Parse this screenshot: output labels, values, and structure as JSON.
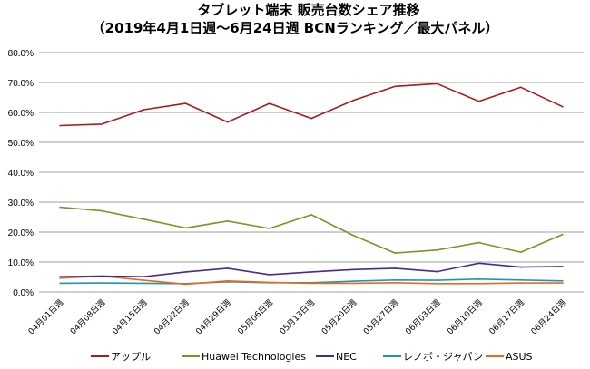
{
  "chart_data": {
    "type": "line",
    "title": "タブレット端末 販売台数シェア推移",
    "subtitle": "（2019年4月1日週～6月24日週 BCNランキング／最大パネル）",
    "xlabel": "",
    "ylabel": "",
    "ylim": [
      0,
      80
    ],
    "y_tick_step": 10,
    "y_tick_labels": [
      "0.0%",
      "10.0%",
      "20.0%",
      "30.0%",
      "40.0%",
      "50.0%",
      "60.0%",
      "70.0%",
      "80.0%"
    ],
    "grid": true,
    "legend_position": "bottom",
    "categories": [
      "04月01日週",
      "04月08日週",
      "04月15日週",
      "04月22日週",
      "04月29日週",
      "05月06日週",
      "05月13日週",
      "05月20日週",
      "05月27日週",
      "06月03日週",
      "06月10日週",
      "06月17日週",
      "06月24日週"
    ],
    "series": [
      {
        "name": "アップル",
        "color": "#a51c1c",
        "values": [
          55.6,
          56.1,
          60.9,
          63.0,
          56.8,
          63.0,
          58.0,
          64.0,
          68.7,
          69.6,
          63.7,
          68.4,
          61.9
        ]
      },
      {
        "name": "Huawei Technologies",
        "color": "#6f9b25",
        "values": [
          28.3,
          27.1,
          24.3,
          21.4,
          23.7,
          21.2,
          25.8,
          18.9,
          13.0,
          14.0,
          16.5,
          13.3,
          19.2
        ]
      },
      {
        "name": "NEC",
        "color": "#4b2a8c",
        "values": [
          5.1,
          5.3,
          5.1,
          6.7,
          7.9,
          5.8,
          6.7,
          7.5,
          7.9,
          6.8,
          9.6,
          8.3,
          8.5
        ]
      },
      {
        "name": "レノボ・ジャパン",
        "color": "#2394b8",
        "values": [
          2.9,
          3.0,
          2.9,
          2.8,
          3.4,
          3.1,
          3.1,
          3.6,
          4.0,
          3.9,
          4.3,
          4.0,
          3.7
        ]
      },
      {
        "name": "ASUS",
        "color": "#e66c1a",
        "values": [
          4.6,
          5.3,
          3.9,
          2.6,
          3.7,
          3.2,
          2.9,
          2.9,
          3.1,
          2.8,
          2.8,
          3.0,
          3.0
        ]
      }
    ]
  }
}
